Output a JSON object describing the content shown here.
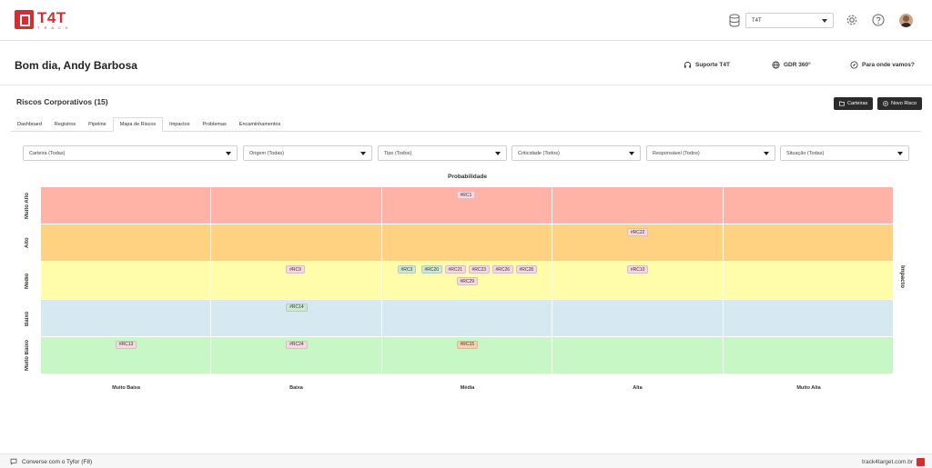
{
  "brand": {
    "name": "T4T",
    "tagline": "TRACK",
    "accent": "#d32f2f"
  },
  "topbar": {
    "tenant": "T4T",
    "icons": [
      "database-icon",
      "gear-icon",
      "help-icon",
      "avatar"
    ]
  },
  "greeting": "Bom dia, Andy Barbosa",
  "header_links": {
    "support": "Suporte T4T",
    "gdr": "GDR 360°",
    "where": "Para onde vamos?"
  },
  "section": {
    "title": "Riscos Corporativos (15)",
    "btn_portfolios": "Carteiras",
    "btn_new": "Novo Risco"
  },
  "tabs": [
    {
      "label": "Dashboard"
    },
    {
      "label": "Registros"
    },
    {
      "label": "Pipeline"
    },
    {
      "label": "Mapa de Riscos",
      "active": true
    },
    {
      "label": "Impactos"
    },
    {
      "label": "Problemas"
    },
    {
      "label": "Encaminhamentos"
    }
  ],
  "filters": [
    "Carteira (Todas)",
    "Origem (Todas)",
    "Tipo (Todos)",
    "Criticidade (Todos)",
    "Responsável (Todos)",
    "Situação (Todas)"
  ],
  "matrix": {
    "x_title": "Probabilidade",
    "y_title": "Impacto",
    "x_labels": [
      "Muito Baixa",
      "Baixa",
      "Média",
      "Alta",
      "Muito Alta"
    ],
    "y_labels": [
      "Muito Alto",
      "Alto",
      "Médio",
      "Baixo",
      "Muito Baixo"
    ],
    "row_colors": [
      "#ffb3a6",
      "#ffd282",
      "#fffdaa",
      "#d6e9f1",
      "#c6f7c4"
    ],
    "chips": [
      {
        "id": "#RC1",
        "row": 0,
        "col": 2,
        "slot": 0,
        "line": 0,
        "color": "#f7d8e0"
      },
      {
        "id": "#RC22",
        "row": 1,
        "col": 3,
        "slot": 0,
        "line": 0,
        "color": "#f7d8e0"
      },
      {
        "id": "#RC9",
        "row": 2,
        "col": 1,
        "slot": 0,
        "line": 0,
        "color": "#f7d8e0"
      },
      {
        "id": "#RC3",
        "row": 2,
        "col": 2,
        "slot": 0,
        "line": 0,
        "color": "#cde9d6"
      },
      {
        "id": "#RC20",
        "row": 2,
        "col": 2,
        "slot": 1,
        "line": 0,
        "color": "#cde9d6"
      },
      {
        "id": "#RC21",
        "row": 2,
        "col": 2,
        "slot": 2,
        "line": 0,
        "color": "#f7d8e0"
      },
      {
        "id": "#RC23",
        "row": 2,
        "col": 2,
        "slot": 3,
        "line": 0,
        "color": "#f7d8e0"
      },
      {
        "id": "#RC26",
        "row": 2,
        "col": 2,
        "slot": 4,
        "line": 0,
        "color": "#f7d8e0"
      },
      {
        "id": "#RC28",
        "row": 2,
        "col": 2,
        "slot": 5,
        "line": 0,
        "color": "#f7d8e0"
      },
      {
        "id": "#RC29",
        "row": 2,
        "col": 2,
        "slot": 0,
        "line": 1,
        "color": "#f7d8e0"
      },
      {
        "id": "#RC10",
        "row": 2,
        "col": 3,
        "slot": 0,
        "line": 0,
        "color": "#f7d8e0"
      },
      {
        "id": "#RC14",
        "row": 3,
        "col": 1,
        "slot": 0,
        "line": 0,
        "color": "#cde9d6"
      },
      {
        "id": "#RC13",
        "row": 4,
        "col": 0,
        "slot": 0,
        "line": 0,
        "color": "#f7d8e0"
      },
      {
        "id": "#RC24",
        "row": 4,
        "col": 1,
        "slot": 0,
        "line": 0,
        "color": "#f7d8e0"
      },
      {
        "id": "#RC15",
        "row": 4,
        "col": 2,
        "slot": 0,
        "line": 0,
        "color": "#ffd0a8"
      }
    ]
  },
  "footer": {
    "chat": "Converse com o Tyfor (F8)",
    "site": "track4target.com.br"
  }
}
